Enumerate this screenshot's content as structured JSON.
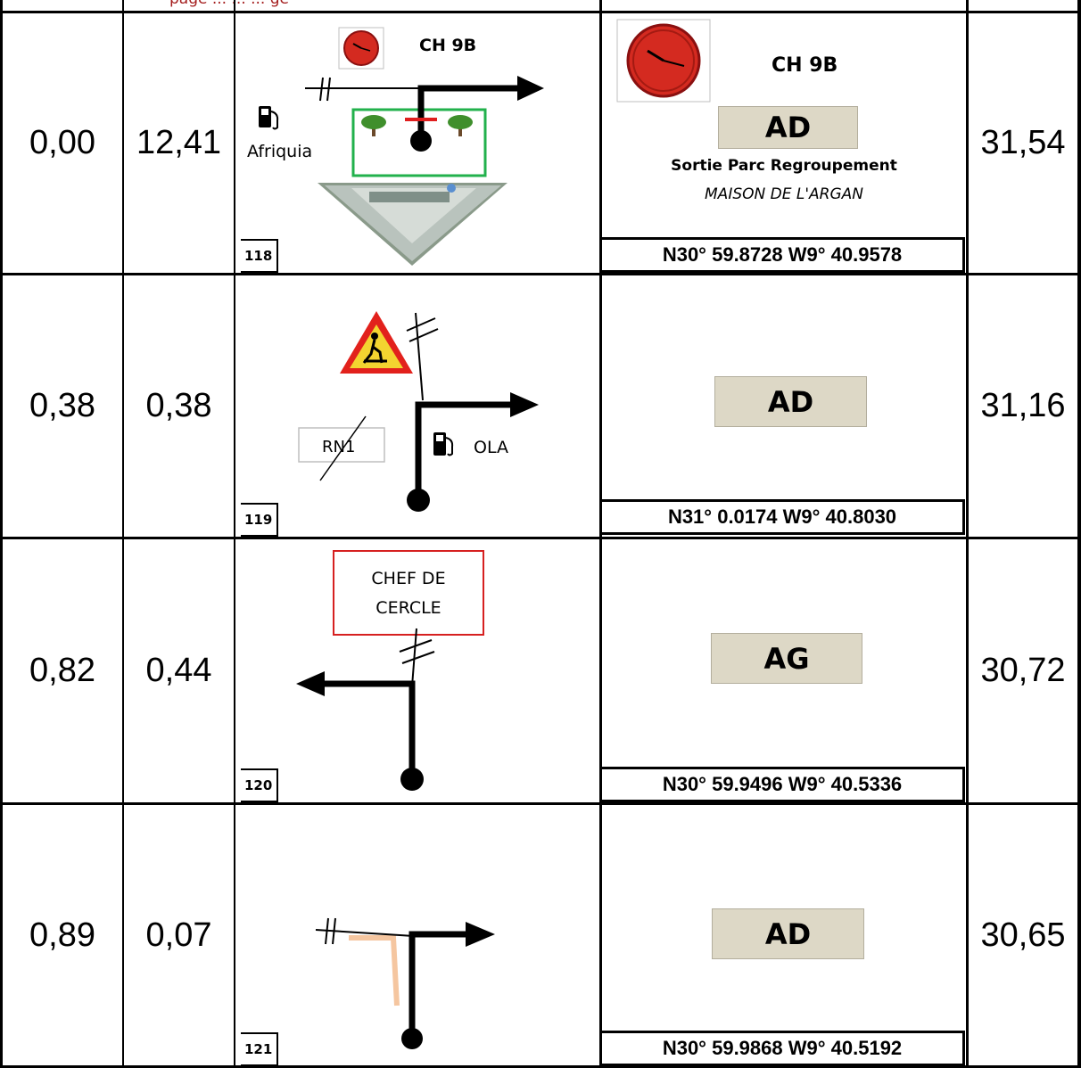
{
  "header": {
    "text": "page ... ... ... ge"
  },
  "rows": [
    {
      "total_km": "0,00",
      "partial_km": "12,41",
      "case_no": "118",
      "diagram": {
        "title": "CH 9B",
        "station_label": "Afriquia"
      },
      "instruction": "AD",
      "title": "CH 9B",
      "note_bold": "Sortie Parc Regroupement",
      "note_italic": "MAISON DE L'ARGAN",
      "gps": "N30° 59.8728  W9° 40.9578",
      "remaining_km": "31,54"
    },
    {
      "total_km": "0,38",
      "partial_km": "0,38",
      "case_no": "119",
      "diagram": {
        "road_label": "RN1",
        "station_label": "OLA"
      },
      "instruction": "AD",
      "gps": "N31° 0.0174  W9° 40.8030",
      "remaining_km": "31,16"
    },
    {
      "total_km": "0,82",
      "partial_km": "0,44",
      "case_no": "120",
      "diagram": {
        "sign_line1": "CHEF  DE",
        "sign_line2": "CERCLE"
      },
      "instruction": "AG",
      "gps": "N30° 59.9496  W9° 40.5336",
      "remaining_km": "30,72"
    },
    {
      "total_km": "0,89",
      "partial_km": "0,07",
      "case_no": "121",
      "instruction": "AD",
      "gps": "N30° 59.9868  W9° 40.5192",
      "remaining_km": "30,65"
    }
  ],
  "colors": {
    "action_fill": "#ddd8c6",
    "clock_red": "#d42a20",
    "green_frame": "#22b14c",
    "sign_red": "#d62020",
    "header_text": "#a41e1e",
    "faint_track": "#f5c6a0"
  },
  "icons": [
    "clock-icon",
    "fuel-pump-icon",
    "tree-icon",
    "roadworks-sign-icon",
    "aerial-photo-icon"
  ]
}
